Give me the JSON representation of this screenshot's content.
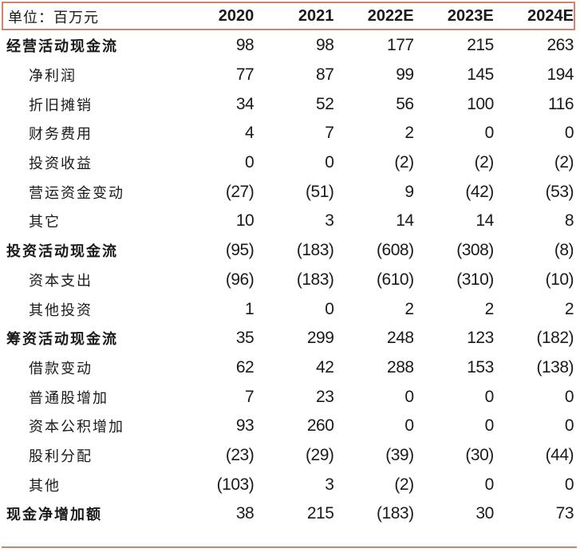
{
  "table": {
    "unit_label": "单位：百万元",
    "years": [
      "2020",
      "2021",
      "2022E",
      "2023E",
      "2024E"
    ],
    "rows": [
      {
        "label": "经营活动现金流",
        "type": "section",
        "values": [
          "98",
          "98",
          "177",
          "215",
          "263"
        ]
      },
      {
        "label": "净利润",
        "type": "sub",
        "values": [
          "77",
          "87",
          "99",
          "145",
          "194"
        ]
      },
      {
        "label": "折旧摊销",
        "type": "sub",
        "values": [
          "34",
          "52",
          "56",
          "100",
          "116"
        ]
      },
      {
        "label": "财务费用",
        "type": "sub",
        "values": [
          "4",
          "7",
          "2",
          "0",
          "0"
        ]
      },
      {
        "label": "投资收益",
        "type": "sub",
        "values": [
          "0",
          "0",
          "(2)",
          "(2)",
          "(2)"
        ]
      },
      {
        "label": "营运资金变动",
        "type": "sub",
        "values": [
          "(27)",
          "(51)",
          "9",
          "(42)",
          "(53)"
        ]
      },
      {
        "label": "其它",
        "type": "sub",
        "values": [
          "10",
          "3",
          "14",
          "14",
          "8"
        ]
      },
      {
        "label": "投资活动现金流",
        "type": "section",
        "values": [
          "(95)",
          "(183)",
          "(608)",
          "(308)",
          "(8)"
        ]
      },
      {
        "label": "资本支出",
        "type": "sub",
        "values": [
          "(96)",
          "(183)",
          "(610)",
          "(310)",
          "(10)"
        ]
      },
      {
        "label": "其他投资",
        "type": "sub",
        "values": [
          "1",
          "0",
          "2",
          "2",
          "2"
        ]
      },
      {
        "label": "筹资活动现金流",
        "type": "section",
        "values": [
          "35",
          "299",
          "248",
          "123",
          "(182)"
        ]
      },
      {
        "label": "借款变动",
        "type": "sub",
        "values": [
          "62",
          "42",
          "288",
          "153",
          "(138)"
        ]
      },
      {
        "label": "普通股增加",
        "type": "sub",
        "values": [
          "7",
          "23",
          "0",
          "0",
          "0"
        ]
      },
      {
        "label": "资本公积增加",
        "type": "sub",
        "values": [
          "93",
          "260",
          "0",
          "0",
          "0"
        ]
      },
      {
        "label": "股利分配",
        "type": "sub",
        "values": [
          "(23)",
          "(29)",
          "(39)",
          "(30)",
          "(44)"
        ]
      },
      {
        "label": "其他",
        "type": "sub",
        "values": [
          "(103)",
          "3",
          "(2)",
          "0",
          "0"
        ]
      },
      {
        "label": "现金净增加额",
        "type": "section",
        "values": [
          "38",
          "215",
          "(183)",
          "30",
          "73"
        ]
      }
    ]
  },
  "colors": {
    "rule": "#c9856e",
    "text": "#1a1a1a",
    "background": "#ffffff"
  }
}
